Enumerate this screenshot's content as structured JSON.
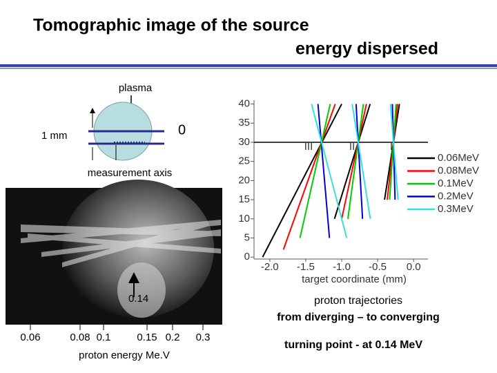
{
  "slide": {
    "title_line1": "Tomographic image of the source",
    "title_line2": "energy dispersed"
  },
  "diagram": {
    "plasma": "plasma",
    "scale": "1 mm",
    "origin": "0",
    "axis_label": "measurement axis"
  },
  "photo": {
    "marker_label": "0.14",
    "energy_labels": [
      "0.06",
      "0.08",
      "0.1",
      "0.15",
      "0.2",
      "0.3"
    ],
    "energy_axis_label": "proton energy Me.V"
  },
  "chart_data": {
    "type": "line",
    "xlabel": "target coordinate (mm)",
    "xlim": [
      -2.2,
      0.2
    ],
    "ylim": [
      -0.5,
      41
    ],
    "xticks": [
      {
        "value": -2,
        "label": "-2.0"
      },
      {
        "value": -1.5,
        "label": "-1.5"
      },
      {
        "value": -1,
        "label": "-1.0"
      },
      {
        "value": -0.5,
        "label": "-0.5"
      },
      {
        "value": 0,
        "label": "0.0"
      }
    ],
    "yticks": [
      0,
      5,
      10,
      15,
      20,
      25,
      30,
      35,
      40
    ],
    "hline": 30,
    "annotations": [
      "III",
      "II",
      "I"
    ],
    "legend": "right",
    "series": [
      {
        "name": "0.06MeV",
        "color": "#000000",
        "x": [
          -2.1,
          -1.0,
          null,
          -1.1,
          -0.605,
          null,
          -0.404,
          -0.197
        ],
        "values": [
          0,
          40,
          null,
          10,
          40,
          null,
          15,
          40
        ]
      },
      {
        "name": "0.08MeV",
        "color": "#ff0000",
        "x": [
          -1.81,
          -1.09,
          null,
          -1.0,
          -0.656,
          null,
          -0.366,
          -0.223
        ],
        "values": [
          2,
          40,
          null,
          10,
          40,
          null,
          15,
          40
        ]
      },
      {
        "name": "0.1MeV",
        "color": "#00cc00",
        "x": [
          -1.58,
          -1.16,
          null,
          -0.914,
          -0.698,
          null,
          -0.334,
          -0.244
        ],
        "values": [
          5,
          40,
          null,
          10,
          40,
          null,
          15,
          40
        ]
      },
      {
        "name": "0.2MeV",
        "color": "#0000cc",
        "x": [
          -1.17,
          -1.33,
          null,
          -0.71,
          -0.8,
          null,
          -0.258,
          -0.295
        ],
        "values": [
          5,
          40,
          null,
          10,
          40,
          null,
          15,
          40
        ]
      },
      {
        "name": "0.3MeV",
        "color": "#33e0e0",
        "x": [
          -0.93,
          -1.42,
          null,
          -0.602,
          -0.854,
          null,
          -0.217,
          -0.322
        ],
        "values": [
          5,
          40,
          null,
          10,
          40,
          null,
          15,
          40
        ]
      }
    ]
  },
  "captions": {
    "line1": "proton trajectories",
    "line2": "from diverging – to converging",
    "line3": "turning point - at 0.14 MeV"
  }
}
